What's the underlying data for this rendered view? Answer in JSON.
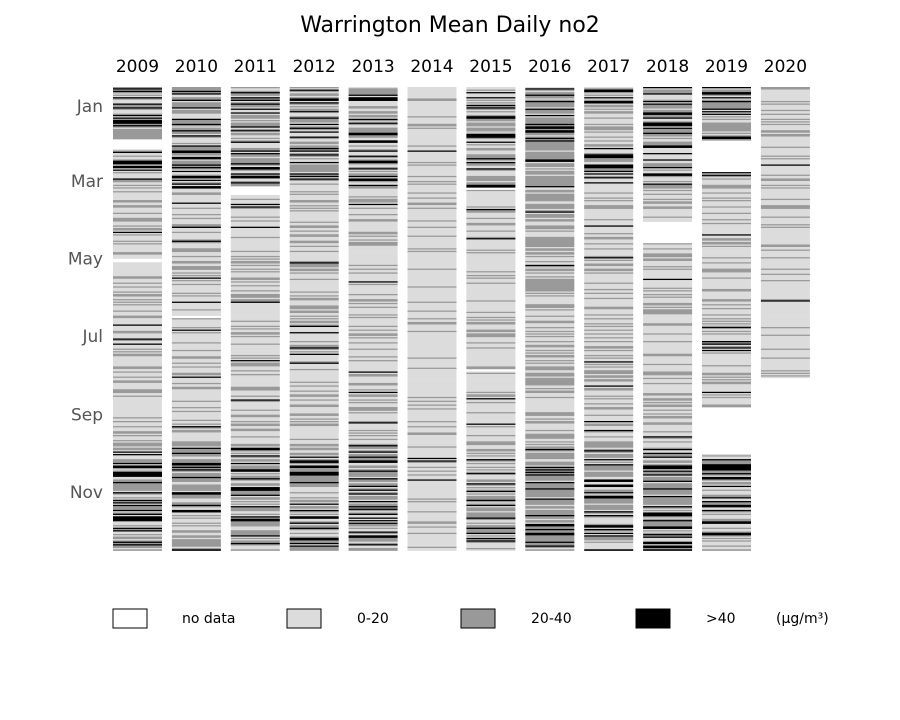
{
  "chart_data": {
    "type": "heatmap",
    "title": "Warrington Mean Daily no2",
    "years": [
      "2009",
      "2010",
      "2011",
      "2012",
      "2013",
      "2014",
      "2015",
      "2016",
      "2017",
      "2018",
      "2019",
      "2020"
    ],
    "month_ticks": [
      "Jan",
      "Mar",
      "May",
      "Jul",
      "Sep",
      "Nov"
    ],
    "legend": [
      {
        "label": "no data",
        "color": "#ffffff"
      },
      {
        "label": "0-20",
        "color": "#dcdcdc"
      },
      {
        "label": "20-40",
        "color": "#999999"
      },
      {
        "label": ">40",
        "color": "#000000"
      }
    ],
    "unit_label": "(μg/m³)",
    "category_colors": [
      "#ffffff",
      "#dcdcdc",
      "#999999",
      "#000000"
    ],
    "column_profiles": [
      {
        "year": "2009",
        "mostly": "mixed",
        "no_data_gaps": [
          [
            41,
            48
          ],
          [
            135,
            137
          ]
        ]
      },
      {
        "year": "2010",
        "mostly": "mixed",
        "no_data_gaps": [
          [
            180,
            181
          ]
        ]
      },
      {
        "year": "2011",
        "mostly": "mixed",
        "no_data_gaps": [
          [
            78,
            84
          ]
        ]
      },
      {
        "year": "2012",
        "mostly": "mixed",
        "no_data_gaps": []
      },
      {
        "year": "2013",
        "mostly": "mixed",
        "no_data_gaps": []
      },
      {
        "year": "2014",
        "mostly": "0-20",
        "no_data_gaps": []
      },
      {
        "year": "2015",
        "mostly": "mixed",
        "no_data_gaps": [
          [
            79,
            80
          ],
          [
            222,
            223
          ]
        ]
      },
      {
        "year": "2016",
        "mostly": "20-40",
        "no_data_gaps": []
      },
      {
        "year": "2017",
        "mostly": "mixed",
        "no_data_gaps": []
      },
      {
        "year": "2018",
        "mostly": "mixed",
        "no_data_gaps": [
          [
            106,
            122
          ]
        ]
      },
      {
        "year": "2019",
        "mostly": "mixed",
        "no_data_gaps": [
          [
            42,
            66
          ],
          [
            252,
            288
          ]
        ]
      },
      {
        "year": "2020",
        "mostly": "0-20",
        "end_day": 229,
        "no_data_gaps": []
      }
    ]
  }
}
